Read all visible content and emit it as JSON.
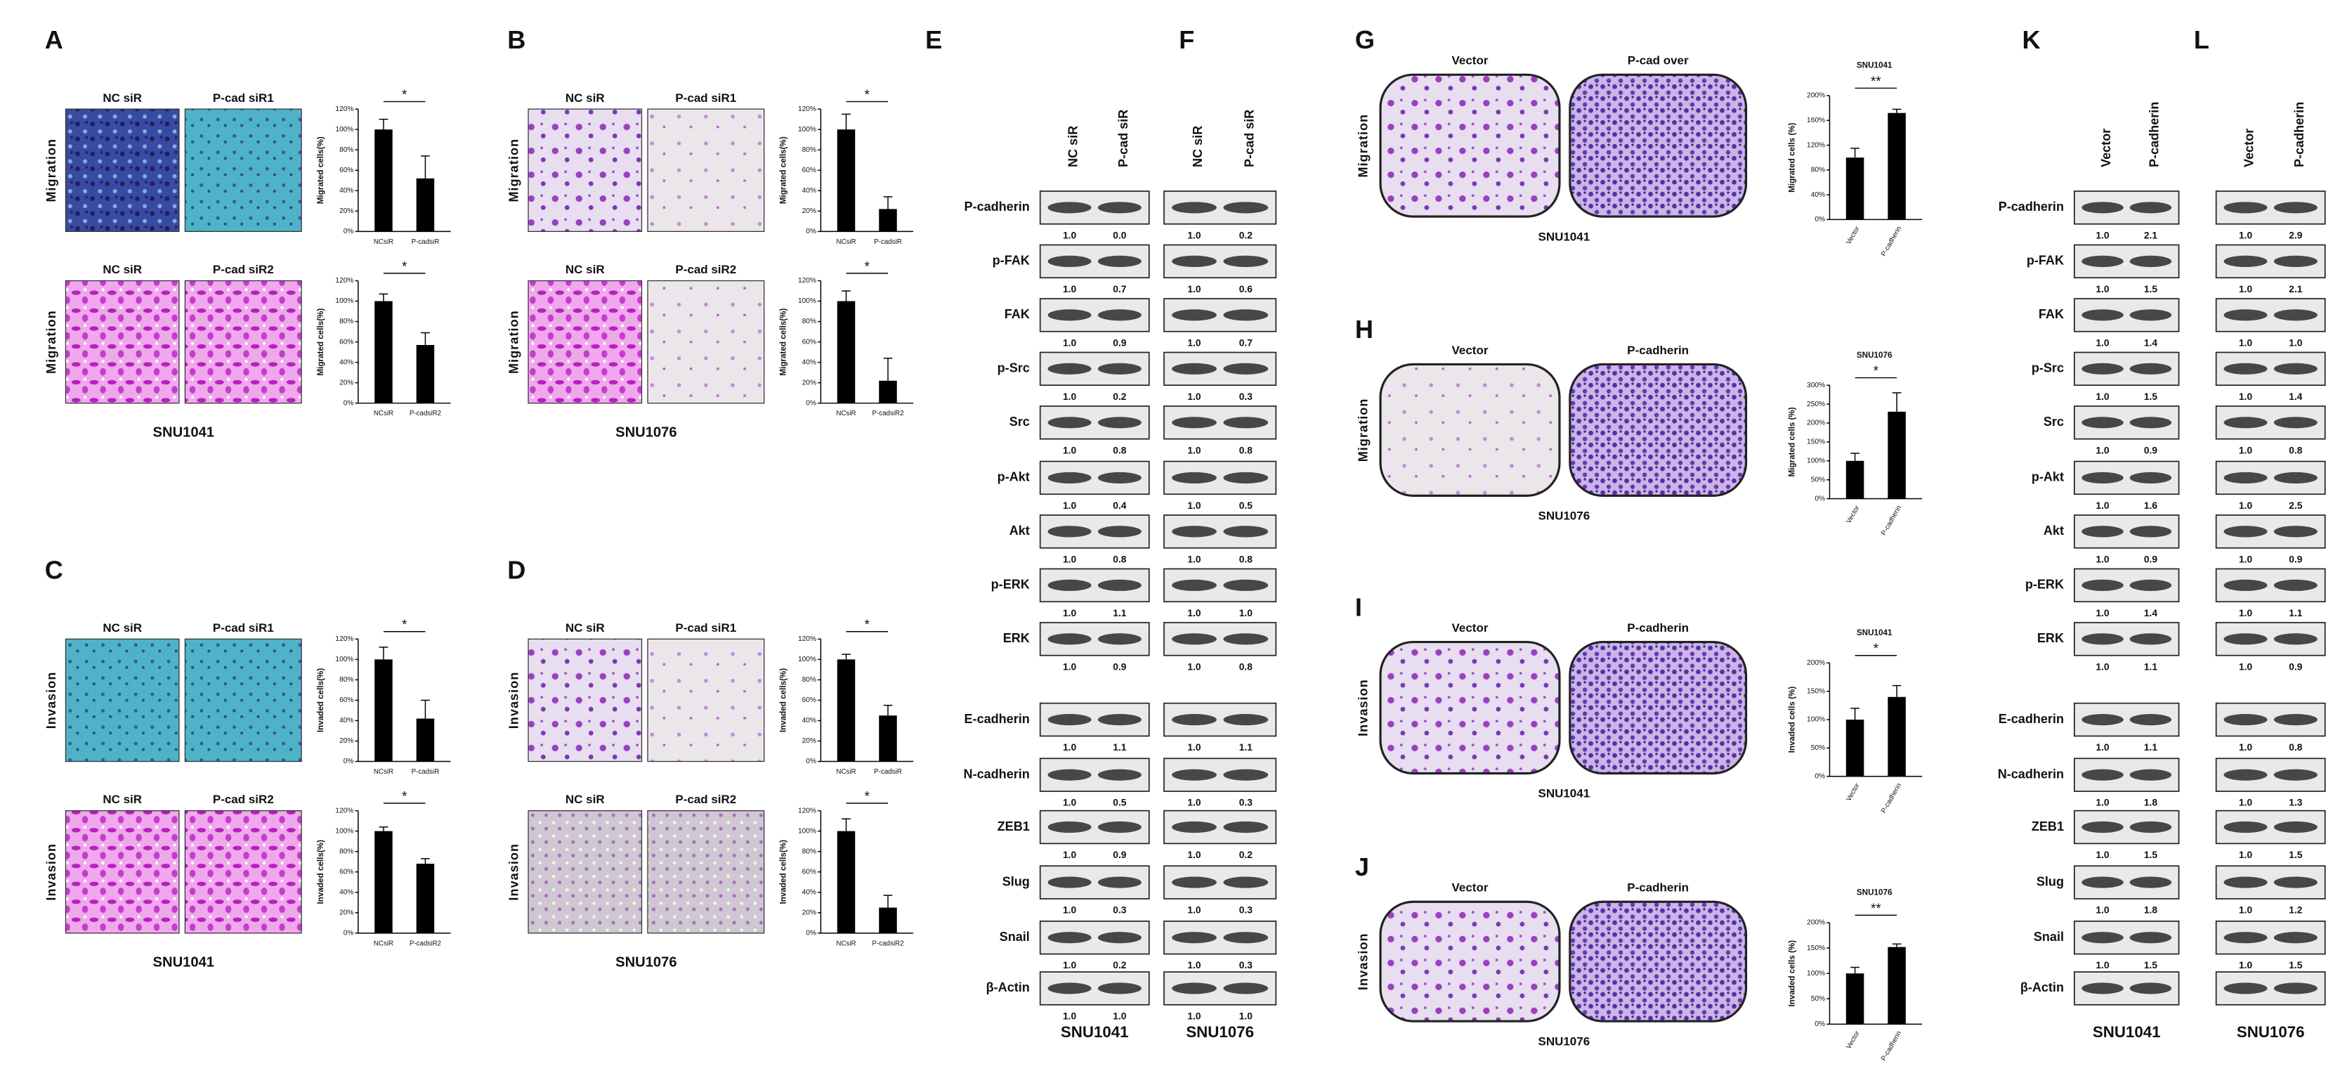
{
  "panels_a_d": [
    {
      "letter": "A",
      "cell_line": "SNU1041",
      "rows": [
        {
          "assay": "Migration",
          "image_labels": [
            "NC siR",
            "P-cad siR1"
          ],
          "chart": {
            "y_label": "Migrated cells(%)",
            "ylim": [
              0,
              120
            ],
            "yticks": [
              {
                "value": 0,
                "label": "0%"
              },
              {
                "value": 20,
                "label": "20%"
              },
              {
                "value": 40,
                "label": "40%"
              },
              {
                "value": 60,
                "label": "60%"
              },
              {
                "value": 80,
                "label": "80%"
              },
              {
                "value": 100,
                "label": "100%"
              },
              {
                "value": 120,
                "label": "120%"
              }
            ],
            "categories": [
              "NCsiR",
              "P-cadsiR"
            ],
            "values": [
              100,
              52
            ],
            "errors": [
              10,
              22
            ],
            "significance": "*"
          }
        },
        {
          "assay": "Migration",
          "image_labels": [
            "NC siR",
            "P-cad siR2"
          ],
          "chart": {
            "y_label": "Migrated cells(%)",
            "ylim": [
              0,
              120
            ],
            "yticks": [
              {
                "value": 0,
                "label": "0%"
              },
              {
                "value": 20,
                "label": "20%"
              },
              {
                "value": 40,
                "label": "40%"
              },
              {
                "value": 60,
                "label": "60%"
              },
              {
                "value": 80,
                "label": "80%"
              },
              {
                "value": 100,
                "label": "100%"
              },
              {
                "value": 120,
                "label": "120%"
              }
            ],
            "categories": [
              "NCsiR",
              "P-cadsiR2"
            ],
            "values": [
              100,
              57
            ],
            "errors": [
              7,
              12
            ],
            "significance": "*"
          }
        }
      ]
    },
    {
      "letter": "B",
      "cell_line": "SNU1076",
      "rows": [
        {
          "assay": "Migration",
          "image_labels": [
            "NC siR",
            "P-cad siR1"
          ],
          "chart": {
            "y_label": "Migrated cells(%)",
            "ylim": [
              0,
              120
            ],
            "yticks": [
              {
                "value": 0,
                "label": "0%"
              },
              {
                "value": 20,
                "label": "20%"
              },
              {
                "value": 40,
                "label": "40%"
              },
              {
                "value": 60,
                "label": "60%"
              },
              {
                "value": 80,
                "label": "80%"
              },
              {
                "value": 100,
                "label": "100%"
              },
              {
                "value": 120,
                "label": "120%"
              }
            ],
            "categories": [
              "NCsiR",
              "P-cadsiR"
            ],
            "values": [
              100,
              22
            ],
            "errors": [
              15,
              12
            ],
            "significance": "*"
          }
        },
        {
          "assay": "Migration",
          "image_labels": [
            "NC siR",
            "P-cad siR2"
          ],
          "chart": {
            "y_label": "Migrated cells(%)",
            "ylim": [
              0,
              120
            ],
            "yticks": [
              {
                "value": 0,
                "label": "0%"
              },
              {
                "value": 20,
                "label": "20%"
              },
              {
                "value": 40,
                "label": "40%"
              },
              {
                "value": 60,
                "label": "60%"
              },
              {
                "value": 80,
                "label": "80%"
              },
              {
                "value": 100,
                "label": "100%"
              },
              {
                "value": 120,
                "label": "120%"
              }
            ],
            "categories": [
              "NCsiR",
              "P-cadsiR2"
            ],
            "values": [
              100,
              22
            ],
            "errors": [
              10,
              22
            ],
            "significance": "*"
          }
        }
      ]
    },
    {
      "letter": "C",
      "cell_line": "SNU1041",
      "rows": [
        {
          "assay": "Invasion",
          "image_labels": [
            "NC siR",
            "P-cad siR1"
          ],
          "chart": {
            "y_label": "Invaded cells(%)",
            "ylim": [
              0,
              120
            ],
            "yticks": [
              {
                "value": 0,
                "label": "0%"
              },
              {
                "value": 20,
                "label": "20%"
              },
              {
                "value": 40,
                "label": "40%"
              },
              {
                "value": 60,
                "label": "60%"
              },
              {
                "value": 80,
                "label": "80%"
              },
              {
                "value": 100,
                "label": "100%"
              },
              {
                "value": 120,
                "label": "120%"
              }
            ],
            "categories": [
              "NCsiR",
              "P-cadsiR"
            ],
            "values": [
              100,
              42
            ],
            "errors": [
              12,
              18
            ],
            "significance": "*"
          }
        },
        {
          "assay": "Invasion",
          "image_labels": [
            "NC siR",
            "P-cad siR2"
          ],
          "chart": {
            "y_label": "Invaded cells(%)",
            "ylim": [
              0,
              120
            ],
            "yticks": [
              {
                "value": 0,
                "label": "0%"
              },
              {
                "value": 20,
                "label": "20%"
              },
              {
                "value": 40,
                "label": "40%"
              },
              {
                "value": 60,
                "label": "60%"
              },
              {
                "value": 80,
                "label": "80%"
              },
              {
                "value": 100,
                "label": "100%"
              },
              {
                "value": 120,
                "label": "120%"
              }
            ],
            "categories": [
              "NCsiR",
              "P-cadsiR2"
            ],
            "values": [
              100,
              68
            ],
            "errors": [
              4,
              5
            ],
            "significance": "*"
          }
        }
      ]
    },
    {
      "letter": "D",
      "cell_line": "SNU1076",
      "rows": [
        {
          "assay": "Invasion",
          "image_labels": [
            "NC siR",
            "P-cad siR1"
          ],
          "chart": {
            "y_label": "Invaded cells(%)",
            "ylim": [
              0,
              120
            ],
            "yticks": [
              {
                "value": 0,
                "label": "0%"
              },
              {
                "value": 20,
                "label": "20%"
              },
              {
                "value": 40,
                "label": "40%"
              },
              {
                "value": 60,
                "label": "60%"
              },
              {
                "value": 80,
                "label": "80%"
              },
              {
                "value": 100,
                "label": "100%"
              },
              {
                "value": 120,
                "label": "120%"
              }
            ],
            "categories": [
              "NCsiR",
              "P-cadsiR"
            ],
            "values": [
              100,
              45
            ],
            "errors": [
              5,
              10
            ],
            "significance": "*"
          }
        },
        {
          "assay": "Invasion",
          "image_labels": [
            "NC siR",
            "P-cad siR2"
          ],
          "chart": {
            "y_label": "Invaded cells(%)",
            "ylim": [
              0,
              120
            ],
            "yticks": [
              {
                "value": 0,
                "label": "0%"
              },
              {
                "value": 20,
                "label": "20%"
              },
              {
                "value": 40,
                "label": "40%"
              },
              {
                "value": 60,
                "label": "60%"
              },
              {
                "value": 80,
                "label": "80%"
              },
              {
                "value": 100,
                "label": "100%"
              },
              {
                "value": 120,
                "label": "120%"
              }
            ],
            "categories": [
              "NCsiR",
              "P-cadsiR2"
            ],
            "values": [
              100,
              25
            ],
            "errors": [
              12,
              12
            ],
            "significance": "*"
          }
        }
      ]
    }
  ],
  "panels_g_j": [
    {
      "letter": "G",
      "assay": "Migration",
      "cell_line": "SNU1041",
      "image_labels": [
        "Vector",
        "P-cad over"
      ],
      "chart": {
        "title": "SNU1041",
        "y_label": "Migrated cells (%)",
        "ylim": [
          0,
          200
        ],
        "yticks": [
          {
            "value": 0,
            "label": "0%"
          },
          {
            "value": 40,
            "label": "40%"
          },
          {
            "value": 80,
            "label": "80%"
          },
          {
            "value": 120,
            "label": "120%"
          },
          {
            "value": 160,
            "label": "160%"
          },
          {
            "value": 200,
            "label": "200%"
          }
        ],
        "categories": [
          "Vector",
          "P-cadherin"
        ],
        "values": [
          100,
          172
        ],
        "errors": [
          15,
          6
        ],
        "significance": "**"
      }
    },
    {
      "letter": "H",
      "assay": "Migration",
      "cell_line": "SNU1076",
      "image_labels": [
        "Vector",
        "P-cadherin"
      ],
      "chart": {
        "title": "SNU1076",
        "y_label": "Migrated cells (%)",
        "ylim": [
          0,
          300
        ],
        "yticks": [
          {
            "value": 0,
            "label": "0%"
          },
          {
            "value": 50,
            "label": "50%"
          },
          {
            "value": 100,
            "label": "100%"
          },
          {
            "value": 150,
            "label": "150%"
          },
          {
            "value": 200,
            "label": "200%"
          },
          {
            "value": 250,
            "label": "250%"
          },
          {
            "value": 300,
            "label": "300%"
          }
        ],
        "categories": [
          "Vector",
          "P-cadherin"
        ],
        "values": [
          100,
          230
        ],
        "errors": [
          20,
          50
        ],
        "significance": "*"
      }
    },
    {
      "letter": "I",
      "assay": "Invasion",
      "cell_line": "SNU1041",
      "image_labels": [
        "Vector",
        "P-cadherin"
      ],
      "chart": {
        "title": "SNU1041",
        "y_label": "Invaded cells (%)",
        "ylim": [
          0,
          200
        ],
        "yticks": [
          {
            "value": 0,
            "label": "0%"
          },
          {
            "value": 50,
            "label": "50%"
          },
          {
            "value": 100,
            "label": "100%"
          },
          {
            "value": 150,
            "label": "150%"
          },
          {
            "value": 200,
            "label": "200%"
          }
        ],
        "categories": [
          "Vector",
          "P-cadherin"
        ],
        "values": [
          100,
          140
        ],
        "errors": [
          20,
          20
        ],
        "significance": "*"
      }
    },
    {
      "letter": "J",
      "assay": "Invasion",
      "cell_line": "SNU1076",
      "image_labels": [
        "Vector",
        "P-cadherin"
      ],
      "chart": {
        "title": "SNU1076",
        "y_label": "Invaded cells (%)",
        "ylim": [
          0,
          200
        ],
        "yticks": [
          {
            "value": 0,
            "label": "0%"
          },
          {
            "value": 50,
            "label": "50%"
          },
          {
            "value": 100,
            "label": "100%"
          },
          {
            "value": 150,
            "label": "150%"
          },
          {
            "value": 200,
            "label": "200%"
          }
        ],
        "categories": [
          "Vector",
          "P-cadherin"
        ],
        "values": [
          100,
          152
        ],
        "errors": [
          12,
          6
        ],
        "significance": "**"
      }
    }
  ],
  "blots": [
    {
      "letter": "E",
      "cell_line": "SNU1041",
      "columns": [
        "NC siR",
        "P-cad siR"
      ],
      "proteins": [
        "P-cadherin",
        "p-FAK",
        "FAK",
        "p-Src",
        "Src",
        "p-Akt",
        "Akt",
        "p-ERK",
        "ERK",
        "E-cadherin",
        "N-cadherin",
        "ZEB1",
        "Slug",
        "Snail",
        "β-Actin"
      ],
      "ratios": [
        [
          "1.0",
          "0.0"
        ],
        [
          "1.0",
          "0.7"
        ],
        [
          "1.0",
          "0.9"
        ],
        [
          "1.0",
          "0.2"
        ],
        [
          "1.0",
          "0.8"
        ],
        [
          "1.0",
          "0.4"
        ],
        [
          "1.0",
          "0.8"
        ],
        [
          "1.0",
          "1.1"
        ],
        [
          "1.0",
          "0.9"
        ],
        [
          "1.0",
          "1.1"
        ],
        [
          "1.0",
          "0.5"
        ],
        [
          "1.0",
          "0.9"
        ],
        [
          "1.0",
          "0.3"
        ],
        [
          "1.0",
          "0.2"
        ],
        [
          "1.0",
          "1.0"
        ]
      ]
    },
    {
      "letter": "F",
      "cell_line": "SNU1076",
      "columns": [
        "NC siR",
        "P-cad siR"
      ],
      "ratios": [
        [
          "1.0",
          "0.2"
        ],
        [
          "1.0",
          "0.6"
        ],
        [
          "1.0",
          "0.7"
        ],
        [
          "1.0",
          "0.3"
        ],
        [
          "1.0",
          "0.8"
        ],
        [
          "1.0",
          "0.5"
        ],
        [
          "1.0",
          "0.8"
        ],
        [
          "1.0",
          "1.0"
        ],
        [
          "1.0",
          "0.8"
        ],
        [
          "1.0",
          "1.1"
        ],
        [
          "1.0",
          "0.3"
        ],
        [
          "1.0",
          "0.2"
        ],
        [
          "1.0",
          "0.3"
        ],
        [
          "1.0",
          "0.3"
        ],
        [
          "1.0",
          "1.0"
        ]
      ]
    },
    {
      "letter": "K",
      "cell_line": "SNU1041",
      "columns": [
        "Vector",
        "P-cadherin"
      ],
      "proteins": [
        "P-cadherin",
        "p-FAK",
        "FAK",
        "p-Src",
        "Src",
        "p-Akt",
        "Akt",
        "p-ERK",
        "ERK",
        "E-cadherin",
        "N-cadherin",
        "ZEB1",
        "Slug",
        "Snail",
        "β-Actin"
      ],
      "ratios": [
        [
          "1.0",
          "2.1"
        ],
        [
          "1.0",
          "1.5"
        ],
        [
          "1.0",
          "1.4"
        ],
        [
          "1.0",
          "1.5"
        ],
        [
          "1.0",
          "0.9"
        ],
        [
          "1.0",
          "1.6"
        ],
        [
          "1.0",
          "0.9"
        ],
        [
          "1.0",
          "1.4"
        ],
        [
          "1.0",
          "1.1"
        ],
        [
          "1.0",
          "1.1"
        ],
        [
          "1.0",
          "1.8"
        ],
        [
          "1.0",
          "1.5"
        ],
        [
          "1.0",
          "1.8"
        ],
        [
          "1.0",
          "1.5"
        ]
      ]
    },
    {
      "letter": "L",
      "cell_line": "SNU1076",
      "columns": [
        "Vector",
        "P-cadherin"
      ],
      "ratios": [
        [
          "1.0",
          "2.9"
        ],
        [
          "1.0",
          "2.1"
        ],
        [
          "1.0",
          "1.0"
        ],
        [
          "1.0",
          "1.4"
        ],
        [
          "1.0",
          "0.8"
        ],
        [
          "1.0",
          "2.5"
        ],
        [
          "1.0",
          "0.9"
        ],
        [
          "1.0",
          "1.1"
        ],
        [
          "1.0",
          "0.9"
        ],
        [
          "1.0",
          "0.8"
        ],
        [
          "1.0",
          "1.3"
        ],
        [
          "1.0",
          "1.5"
        ],
        [
          "1.0",
          "1.2"
        ],
        [
          "1.0",
          "1.5"
        ]
      ]
    }
  ]
}
